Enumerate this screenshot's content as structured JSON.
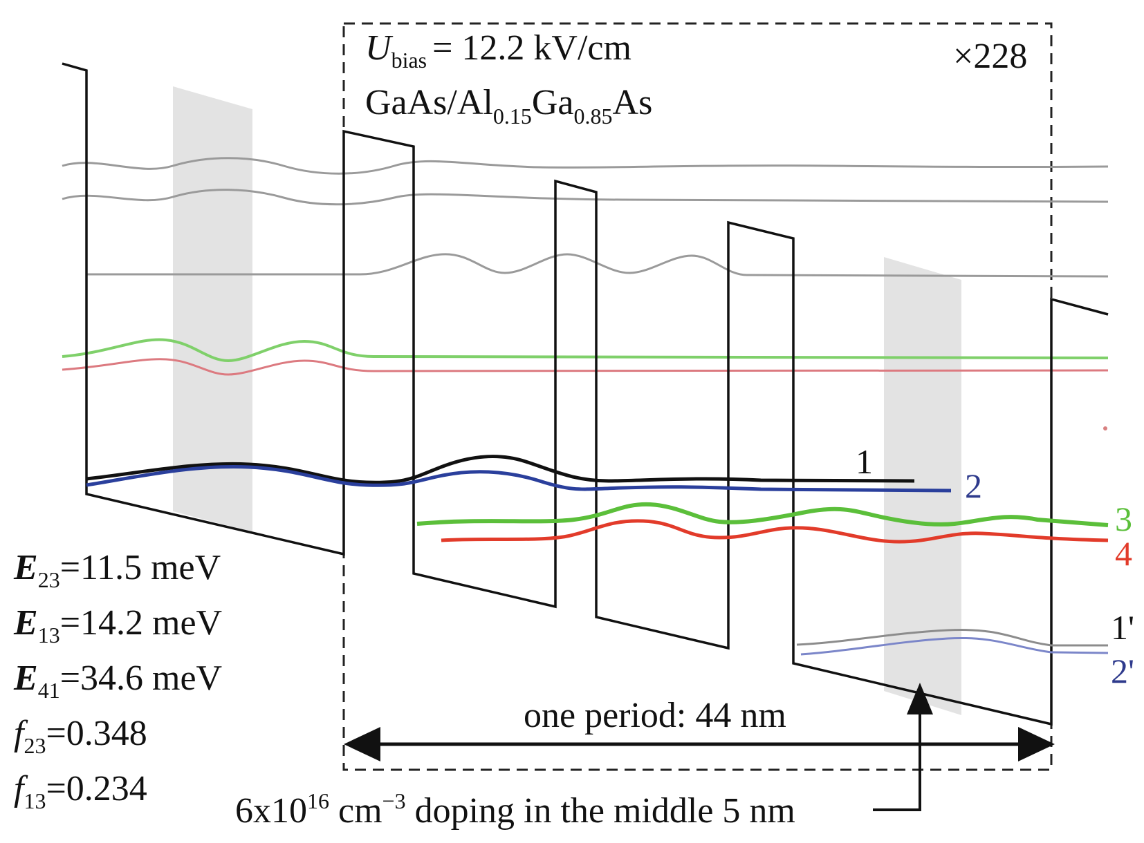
{
  "header": {
    "bias_symbol": "U",
    "bias_subscript": "bias",
    "bias_value": "= 12.2 kV/cm",
    "material_base": "GaAs/Al",
    "material_al_sub": "0.15",
    "material_mid": "Ga",
    "material_ga_sub": "0.85",
    "material_end": "As",
    "multiplier": "×228"
  },
  "energies": [
    {
      "symbol": "E",
      "subscript": "23",
      "value": "=11.5 meV"
    },
    {
      "symbol": "E",
      "subscript": "13",
      "value": "=14.2 meV"
    },
    {
      "symbol": "E",
      "subscript": "41",
      "value": "=34.6 meV"
    },
    {
      "symbol": "f",
      "subscript": "23",
      "value": "=0.348"
    },
    {
      "symbol": "f",
      "subscript": "13",
      "value": "=0.234"
    }
  ],
  "levels": [
    {
      "label": "1",
      "color": "#111111"
    },
    {
      "label": "2",
      "color": "#2e3a8c"
    },
    {
      "label": "3",
      "color": "#5bbf3a"
    },
    {
      "label": "4",
      "color": "#e23b2a"
    },
    {
      "label": "1'",
      "color": "#111111"
    },
    {
      "label": "2'",
      "color": "#2e3a8c"
    }
  ],
  "period_label": "one period: 44 nm",
  "doping": {
    "prefix": "6x10",
    "exp": "16",
    "unit": " cm",
    "unit_exp": "−3",
    "suffix": " doping in the middle 5 nm"
  }
}
